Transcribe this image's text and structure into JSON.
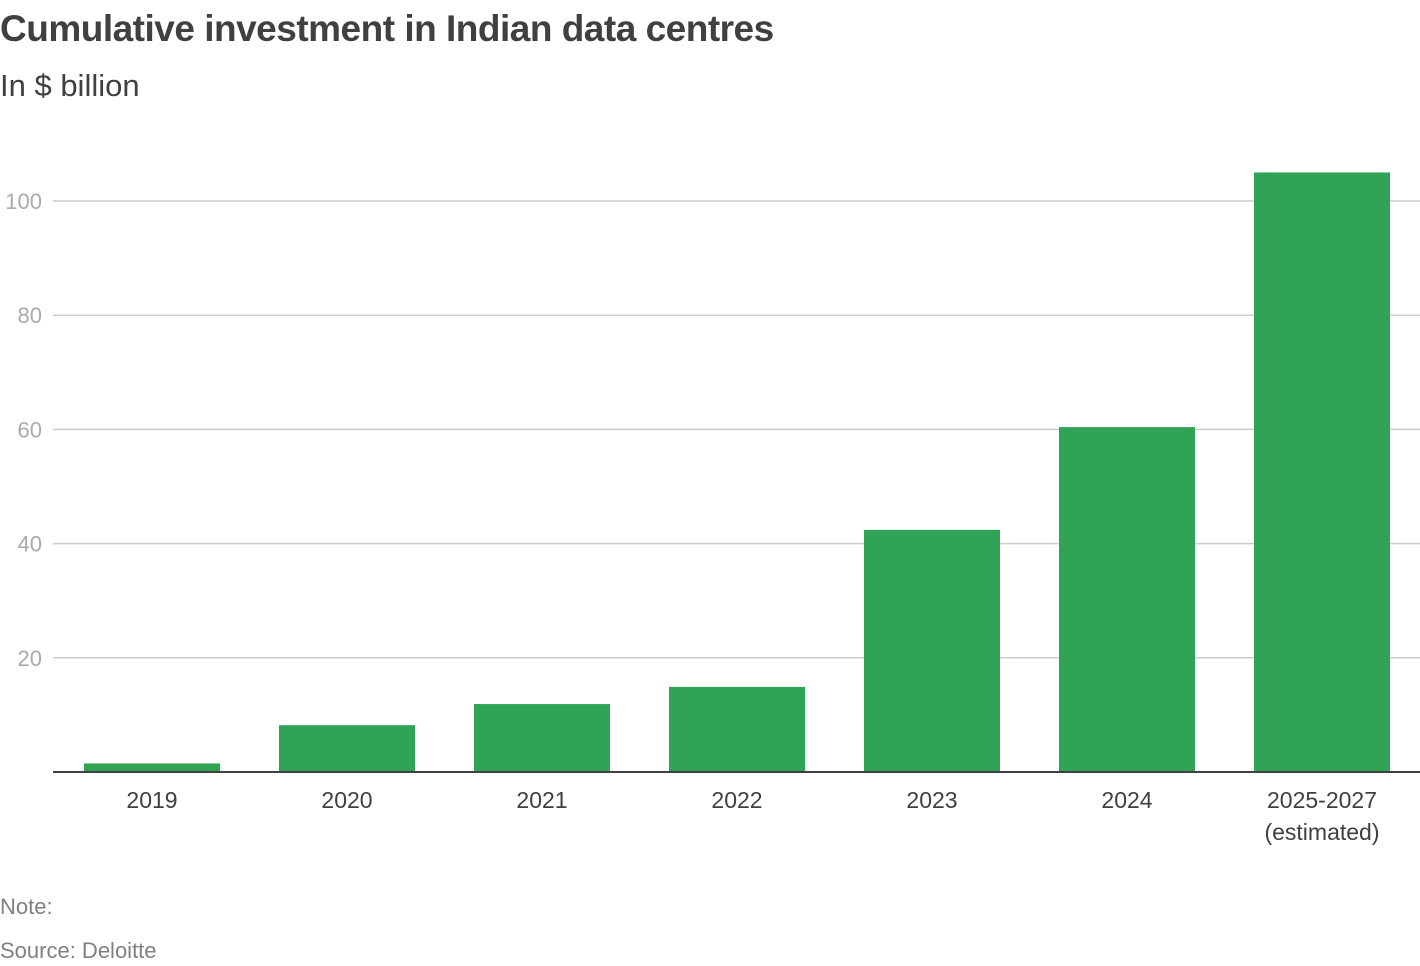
{
  "chart_data": {
    "type": "bar",
    "title": "Cumulative investment in Indian data centres",
    "subtitle": "In $ billion",
    "xlabel": "",
    "ylabel": "",
    "categories": [
      [
        "2019"
      ],
      [
        "2020"
      ],
      [
        "2021"
      ],
      [
        "2022"
      ],
      [
        "2023"
      ],
      [
        "2024"
      ],
      [
        "2025-2027",
        "(estimated)"
      ]
    ],
    "values": [
      1.5,
      8.2,
      11.9,
      14.9,
      42.4,
      60.4,
      105
    ],
    "ylim": [
      0,
      105
    ],
    "yticks": [
      20,
      40,
      60,
      80,
      100
    ],
    "grid": true,
    "legend": "none",
    "colors": {
      "bar": "#31a354",
      "grid": "#cccccc",
      "axis": "#404040",
      "tick_label": "#aaaaaa",
      "category_label": "#404040"
    }
  },
  "footer": {
    "note": "Note:",
    "source": "Source: Deloitte"
  }
}
